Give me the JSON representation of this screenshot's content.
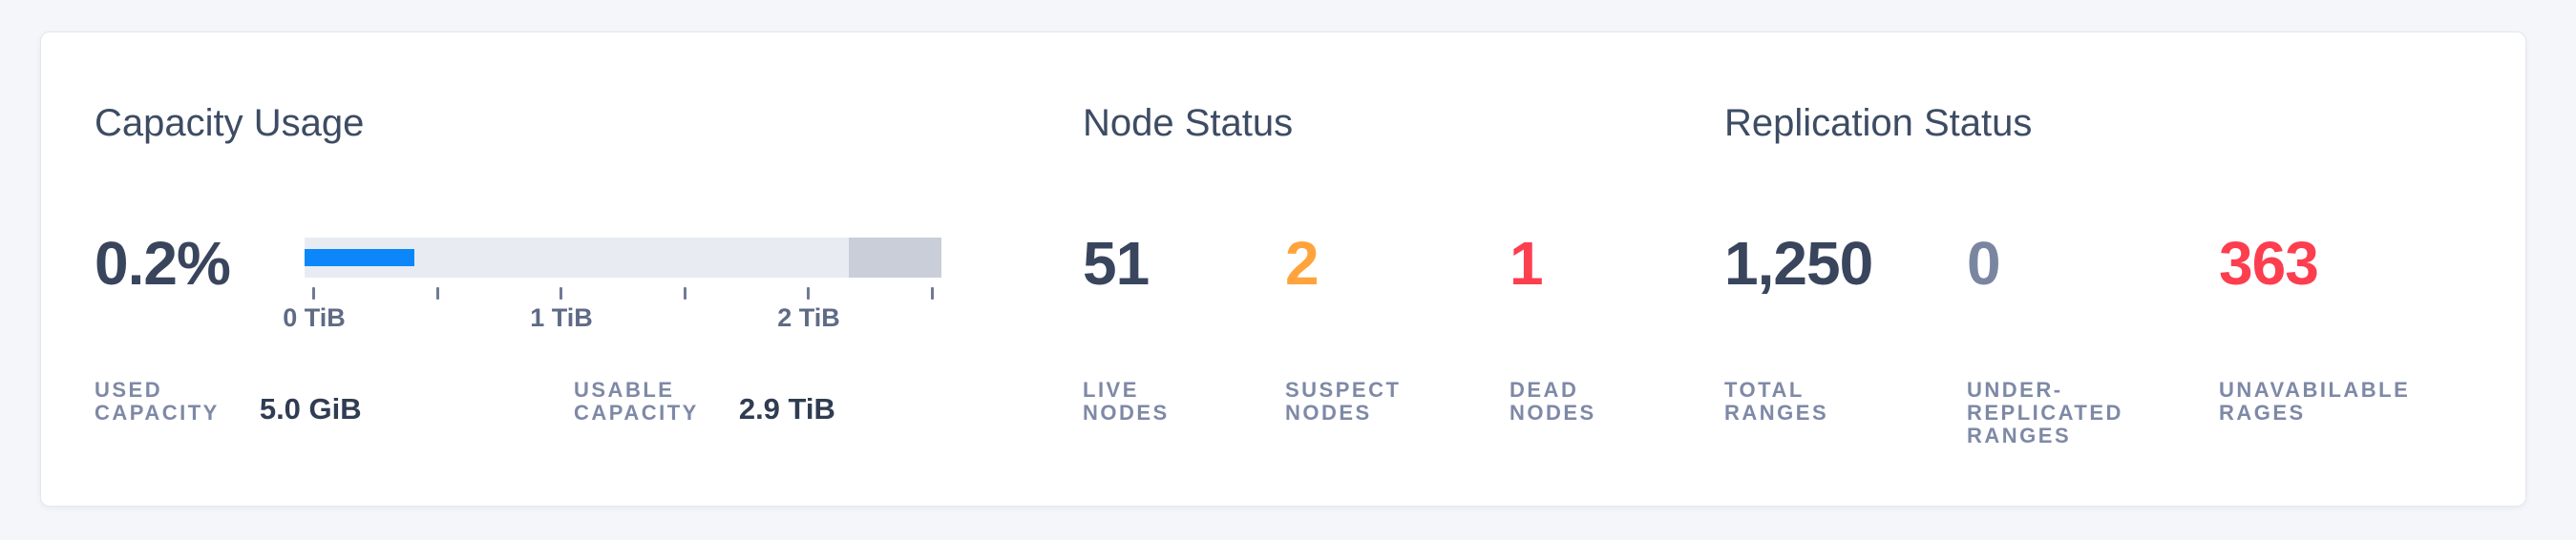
{
  "colors": {
    "page_background": "#f4f6fa",
    "card_background": "#ffffff",
    "accent_blue": "#0b87fa",
    "status_orange": "#ffa43c",
    "status_red": "#fc3e4f",
    "number_dark": "#39455c",
    "number_muted": "#7a86a1",
    "label_muted": "#7e89a6",
    "bar_track": "#e8ecf2",
    "bar_reserved": "#c9ced9"
  },
  "capacity": {
    "title": "Capacity Usage",
    "used_percent": "0.2%",
    "bar": {
      "used_width": "17.2%",
      "reserved_width": "14.5%"
    },
    "axis_ticks": [
      "0 TiB",
      "1 TiB",
      "2 TiB"
    ],
    "stats": [
      {
        "label_lines": [
          "USED",
          "CAPACITY"
        ],
        "value": "5.0 GiB"
      },
      {
        "label_lines": [
          "USABLE",
          "CAPACITY"
        ],
        "value": "2.9 TiB"
      }
    ]
  },
  "node_status": {
    "title": "Node Status",
    "stats": [
      {
        "value": "51",
        "color": "#39455c",
        "label_lines": [
          "LIVE",
          "NODES"
        ]
      },
      {
        "value": "2",
        "color": "#ffa43c",
        "label_lines": [
          "SUSPECT",
          "NODES"
        ]
      },
      {
        "value": "1",
        "color": "#fc3e4f",
        "label_lines": [
          "DEAD",
          "NODES"
        ]
      }
    ]
  },
  "replication_status": {
    "title": "Replication Status",
    "stats": [
      {
        "value": "1,250",
        "color": "#39455c",
        "label_lines": [
          "TOTAL",
          "RANGES"
        ]
      },
      {
        "value": "0",
        "color": "#7a86a1",
        "label_lines": [
          "UNDER-",
          "REPLICATED",
          "RANGES"
        ]
      },
      {
        "value": "363",
        "color": "#fc3e4f",
        "label_lines": [
          "UNAVABILABLE",
          "RAGES"
        ]
      }
    ]
  },
  "chart_data": {
    "type": "bar",
    "subtype": "capacity-gauge",
    "title": "Capacity Usage",
    "used_percent": 0.2,
    "used_capacity": "5.0 GiB",
    "usable_capacity": "2.9 TiB",
    "xlim_tib": [
      0,
      2.9
    ],
    "axis_tick_values_tib": [
      0,
      0.5,
      1,
      1.5,
      2,
      2.5
    ],
    "axis_tick_labels": [
      "0 TiB",
      "1 TiB",
      "2 TiB"
    ],
    "grid": false,
    "legend": false
  }
}
